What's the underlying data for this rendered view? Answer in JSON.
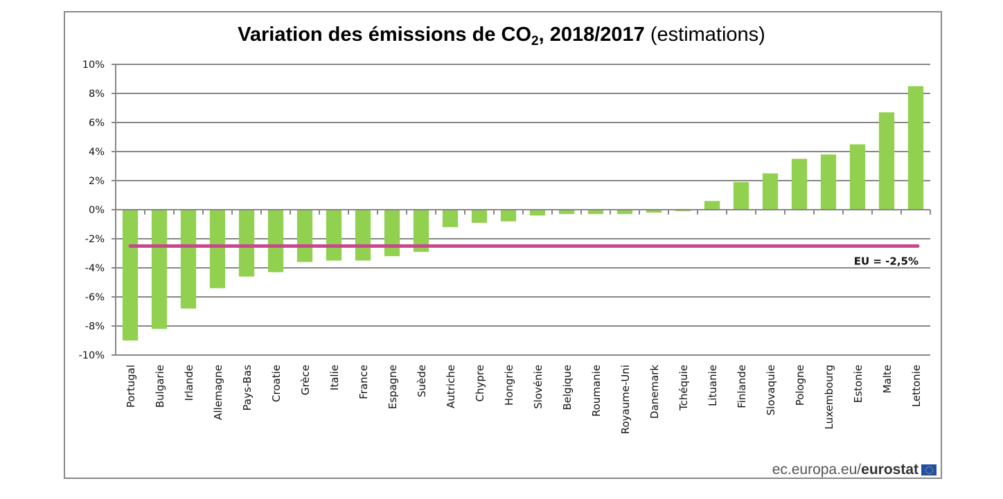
{
  "chart_data": {
    "type": "bar",
    "title_bold": "Variation des émissions de CO",
    "title_sub": "2",
    "title_bold_after": ", 2018/2017",
    "title_normal": " (estimations)",
    "xlabel": "",
    "ylabel": "",
    "ylim": [
      -10,
      10
    ],
    "yticks": [
      10,
      8,
      6,
      4,
      2,
      0,
      -2,
      -4,
      -6,
      -8,
      -10
    ],
    "ytick_labels": [
      "10%",
      "8%",
      "6%",
      "4%",
      "2%",
      "0%",
      "-2%",
      "-4%",
      "-6%",
      "-8%",
      "-10%"
    ],
    "grid": true,
    "categories": [
      "Portugal",
      "Bulgarie",
      "Irlande",
      "Allemagne",
      "Pays-Bas",
      "Croatie",
      "Grèce",
      "Italie",
      "France",
      "Espagne",
      "Suède",
      "Autriche",
      "Chypre",
      "Hongrie",
      "Slovénie",
      "Belgique",
      "Roumanie",
      "Royaume-Uni",
      "Danemark",
      "Tchéquie",
      "Lituanie",
      "Finlande",
      "Slovaquie",
      "Pologne",
      "Luxembourg",
      "Estonie",
      "Malte",
      "Lettonie"
    ],
    "values": [
      -9.0,
      -8.2,
      -6.8,
      -5.4,
      -4.6,
      -4.3,
      -3.6,
      -3.5,
      -3.5,
      -3.2,
      -2.9,
      -1.2,
      -0.9,
      -0.8,
      -0.4,
      -0.3,
      -0.3,
      -0.3,
      -0.2,
      -0.1,
      0.6,
      1.9,
      2.5,
      3.5,
      3.8,
      4.5,
      6.7,
      8.5
    ],
    "reference_line": {
      "value": -2.5,
      "label": "EU = -2,5%"
    },
    "colors": {
      "bar": "#92d050",
      "reference": "#c8488f",
      "grid": "#868686"
    }
  },
  "footer": {
    "source_normal": "ec.europa.eu/",
    "source_bold": "eurostat",
    "flag_icon": "eu-flag-icon"
  }
}
